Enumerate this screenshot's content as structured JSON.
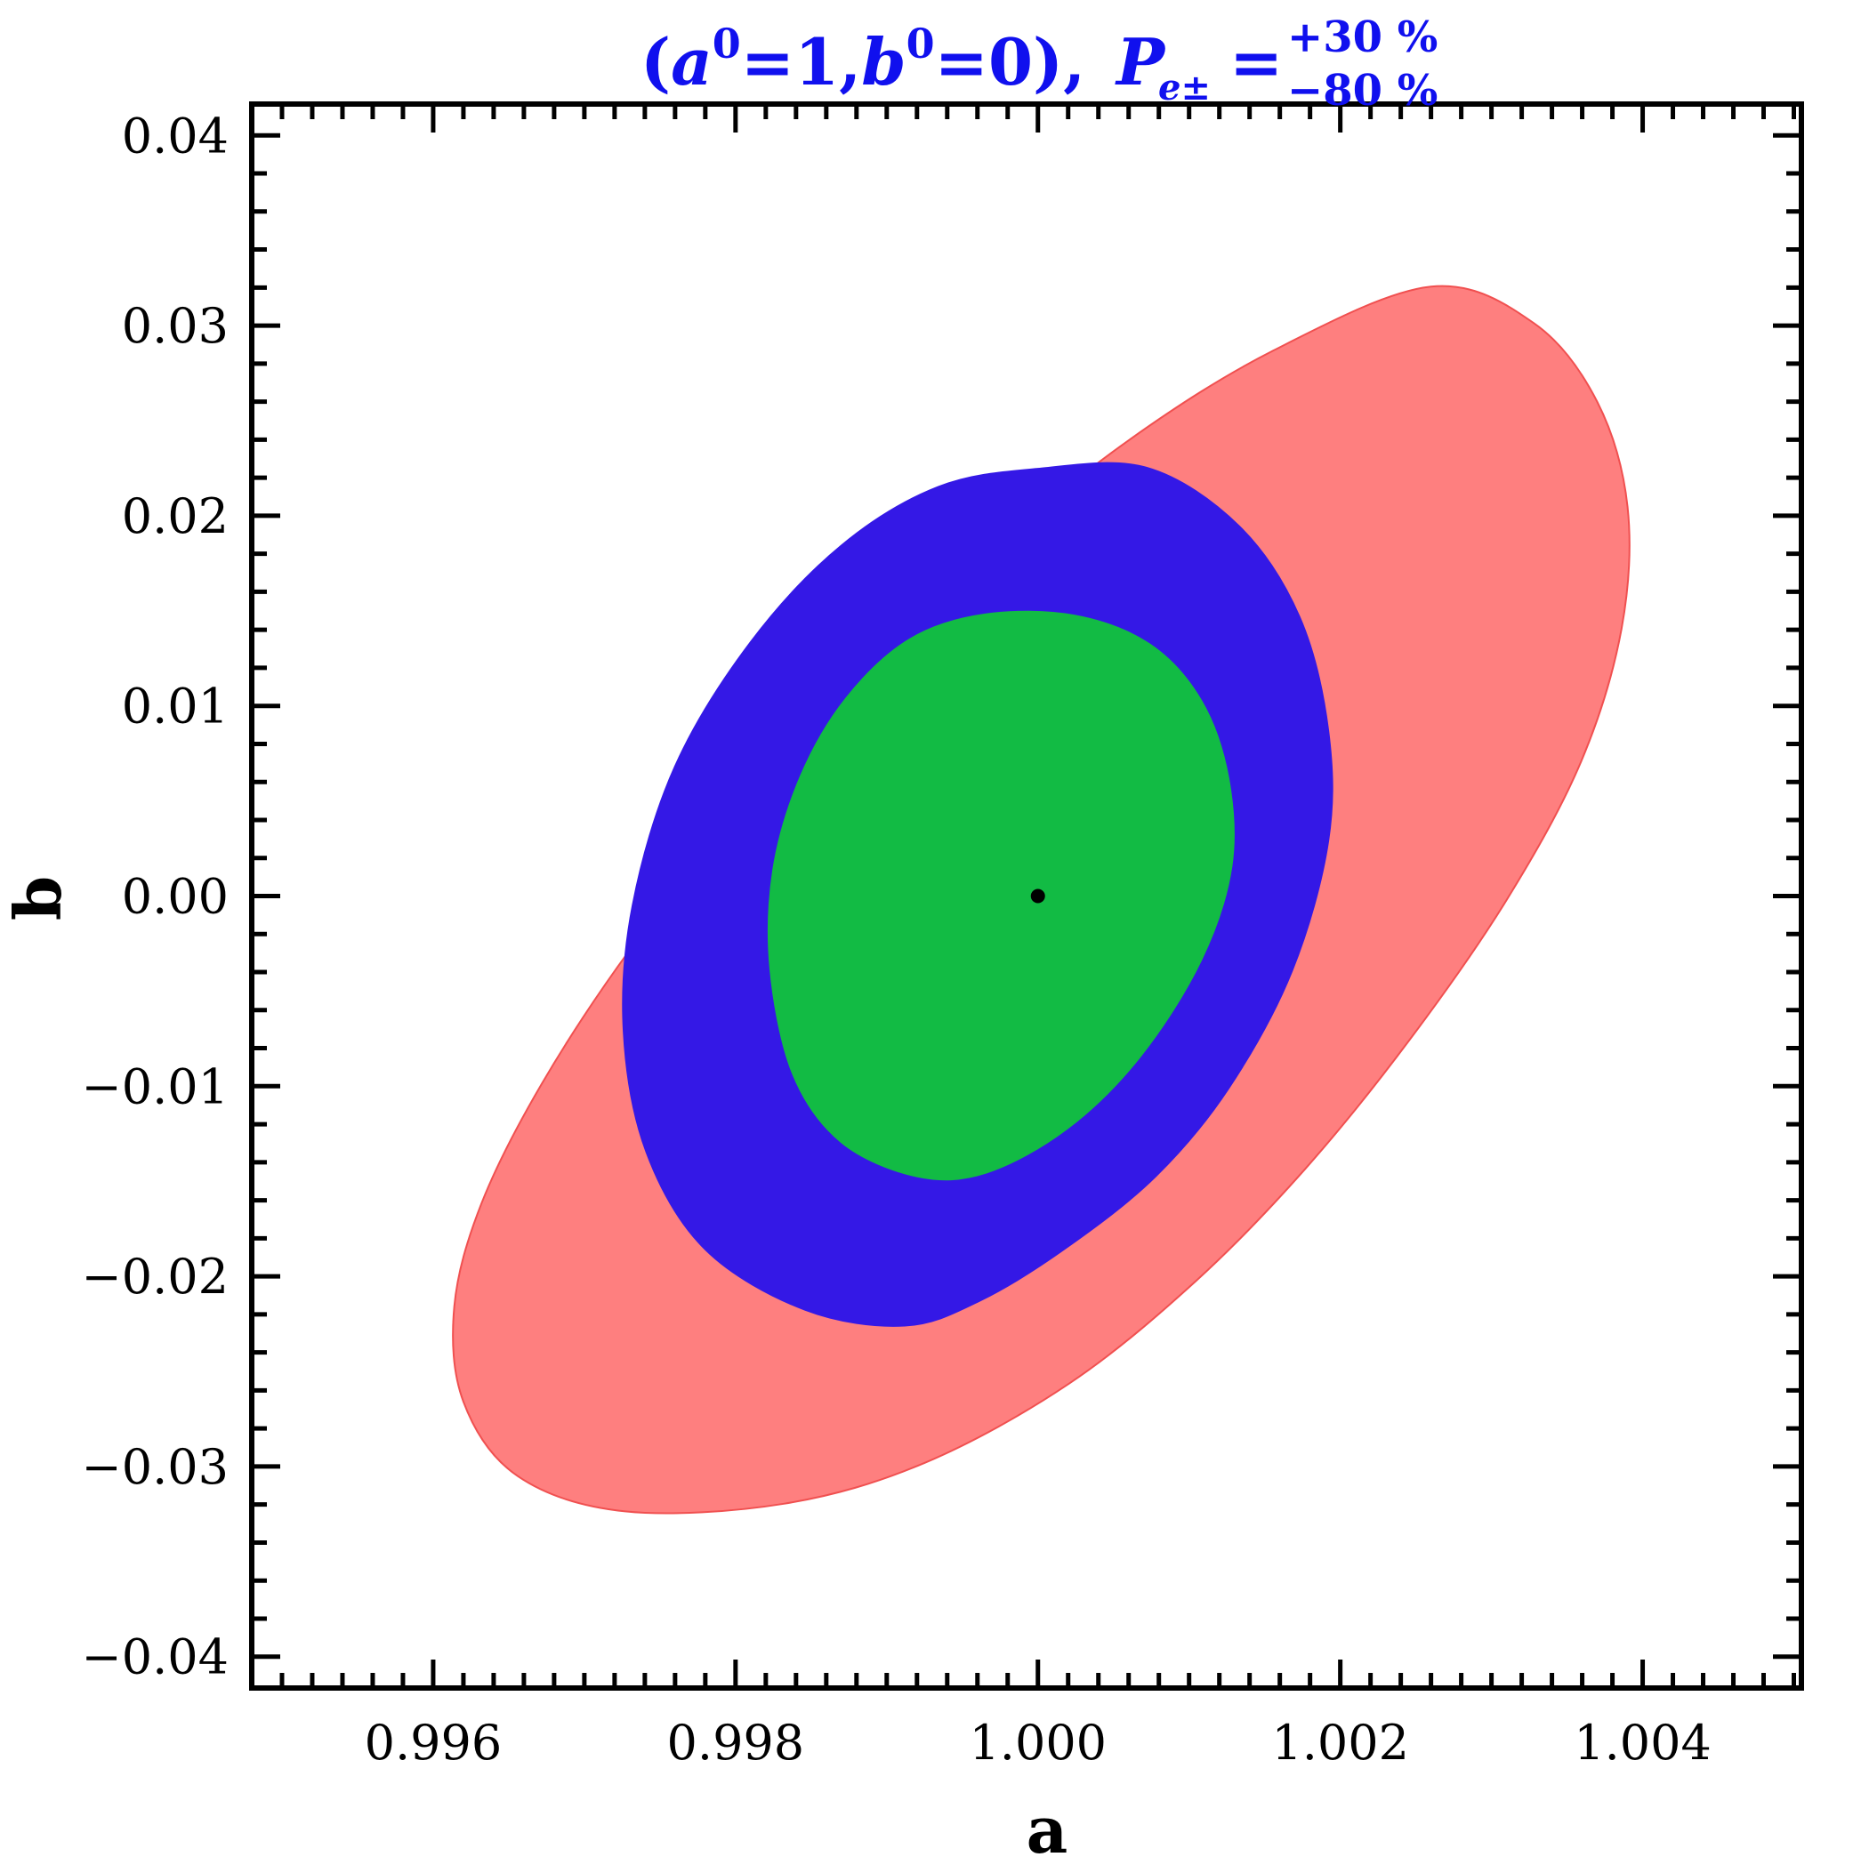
{
  "chart_data": {
    "type": "contour",
    "title": {
      "a_sym": "a",
      "b_sym": "b",
      "sup0": "0",
      "a_val": "=1,",
      "b_val": "=0",
      "open_paren": "(",
      "close_paren": "),",
      "p_sym": "P",
      "p_sub": "e±",
      "eq": "=",
      "pol_plus": "+30 %",
      "pol_minus": "−80 %"
    },
    "title_color": "#1010ee",
    "xlabel": "a",
    "ylabel": "b",
    "xlim": [
      0.9948,
      1.00505
    ],
    "ylim": [
      -0.04165,
      0.04165
    ],
    "x_ticks": [
      0.996,
      0.998,
      1.0,
      1.002,
      1.004
    ],
    "x_tick_labels": [
      "0.996",
      "0.998",
      "1.000",
      "1.002",
      "1.004"
    ],
    "y_ticks": [
      -0.04,
      -0.03,
      -0.02,
      -0.01,
      0.0,
      0.01,
      0.02,
      0.03,
      0.04
    ],
    "y_tick_labels": [
      "−0.04",
      "−0.03",
      "−0.02",
      "−0.01",
      "0.00",
      "0.01",
      "0.02",
      "0.03",
      "0.04"
    ],
    "x_minor_step": 0.0002,
    "y_minor_step": 0.002,
    "regions": [
      {
        "fill": "#fe7f7f",
        "stroke": "#f05050",
        "points": [
          [
            1.0026,
            0.03205
          ],
          [
            1.00328,
            0.03013
          ],
          [
            1.0037,
            0.02598
          ],
          [
            1.0039,
            0.02046
          ],
          [
            1.00386,
            0.01405
          ],
          [
            1.00359,
            0.00702
          ],
          [
            1.0031,
            -0.00021
          ],
          [
            1.00246,
            -0.00755
          ],
          [
            1.00177,
            -0.01433
          ],
          [
            1.00105,
            -0.02021
          ],
          [
            1.00021,
            -0.02562
          ],
          [
            0.99925,
            -0.02981
          ],
          [
            0.99832,
            -0.03196
          ],
          [
            0.99727,
            -0.03236
          ],
          [
            0.99656,
            -0.03051
          ],
          [
            0.9962,
            -0.02659
          ],
          [
            0.99614,
            -0.02158
          ],
          [
            0.99632,
            -0.01616
          ],
          [
            0.99672,
            -0.00985
          ],
          [
            0.9973,
            -0.00284
          ],
          [
            0.99801,
            0.00423
          ],
          [
            0.99878,
            0.01124
          ],
          [
            0.99969,
            0.01815
          ],
          [
            1.00061,
            0.02402
          ],
          [
            1.00156,
            0.0287
          ]
        ]
      },
      {
        "fill": "#3418e6",
        "stroke": "#3418e6",
        "points": [
          [
            1.00072,
            0.02252
          ],
          [
            1.00133,
            0.01945
          ],
          [
            1.00173,
            0.01467
          ],
          [
            1.00192,
            0.0087
          ],
          [
            1.00192,
            0.0029
          ],
          [
            1.00168,
            -0.00394
          ],
          [
            1.00126,
            -0.01012
          ],
          [
            1.00078,
            -0.01473
          ],
          [
            1.00019,
            -0.01848
          ],
          [
            0.99962,
            -0.02126
          ],
          [
            0.99912,
            -0.02259
          ],
          [
            0.99846,
            -0.02176
          ],
          [
            0.9978,
            -0.01858
          ],
          [
            0.99741,
            -0.01346
          ],
          [
            0.99726,
            -0.00711
          ],
          [
            0.99732,
            -0.00047
          ],
          [
            0.9976,
            0.00682
          ],
          [
            0.9981,
            0.01335
          ],
          [
            0.9987,
            0.01843
          ],
          [
            0.99934,
            0.02151
          ],
          [
            1.0,
            0.02247
          ]
        ]
      },
      {
        "fill": "#12bb44",
        "stroke": "#12bb44",
        "points": [
          [
            1.00024,
            0.01475
          ],
          [
            1.00074,
            0.01323
          ],
          [
            1.00108,
            0.01027
          ],
          [
            1.00126,
            0.00619
          ],
          [
            1.00128,
            0.00154
          ],
          [
            1.00108,
            -0.00336
          ],
          [
            1.00068,
            -0.0084
          ],
          [
            1.0002,
            -0.01219
          ],
          [
            0.99966,
            -0.01454
          ],
          [
            0.9992,
            -0.01474
          ],
          [
            0.9987,
            -0.01294
          ],
          [
            0.99838,
            -0.00936
          ],
          [
            0.99823,
            -0.00382
          ],
          [
            0.99825,
            0.00141
          ],
          [
            0.99843,
            0.00628
          ],
          [
            0.99873,
            0.01038
          ],
          [
            0.99915,
            0.01349
          ],
          [
            0.99965,
            0.01481
          ]
        ]
      }
    ],
    "best_fit_point": {
      "x": 1.0,
      "y": 0.0
    }
  }
}
